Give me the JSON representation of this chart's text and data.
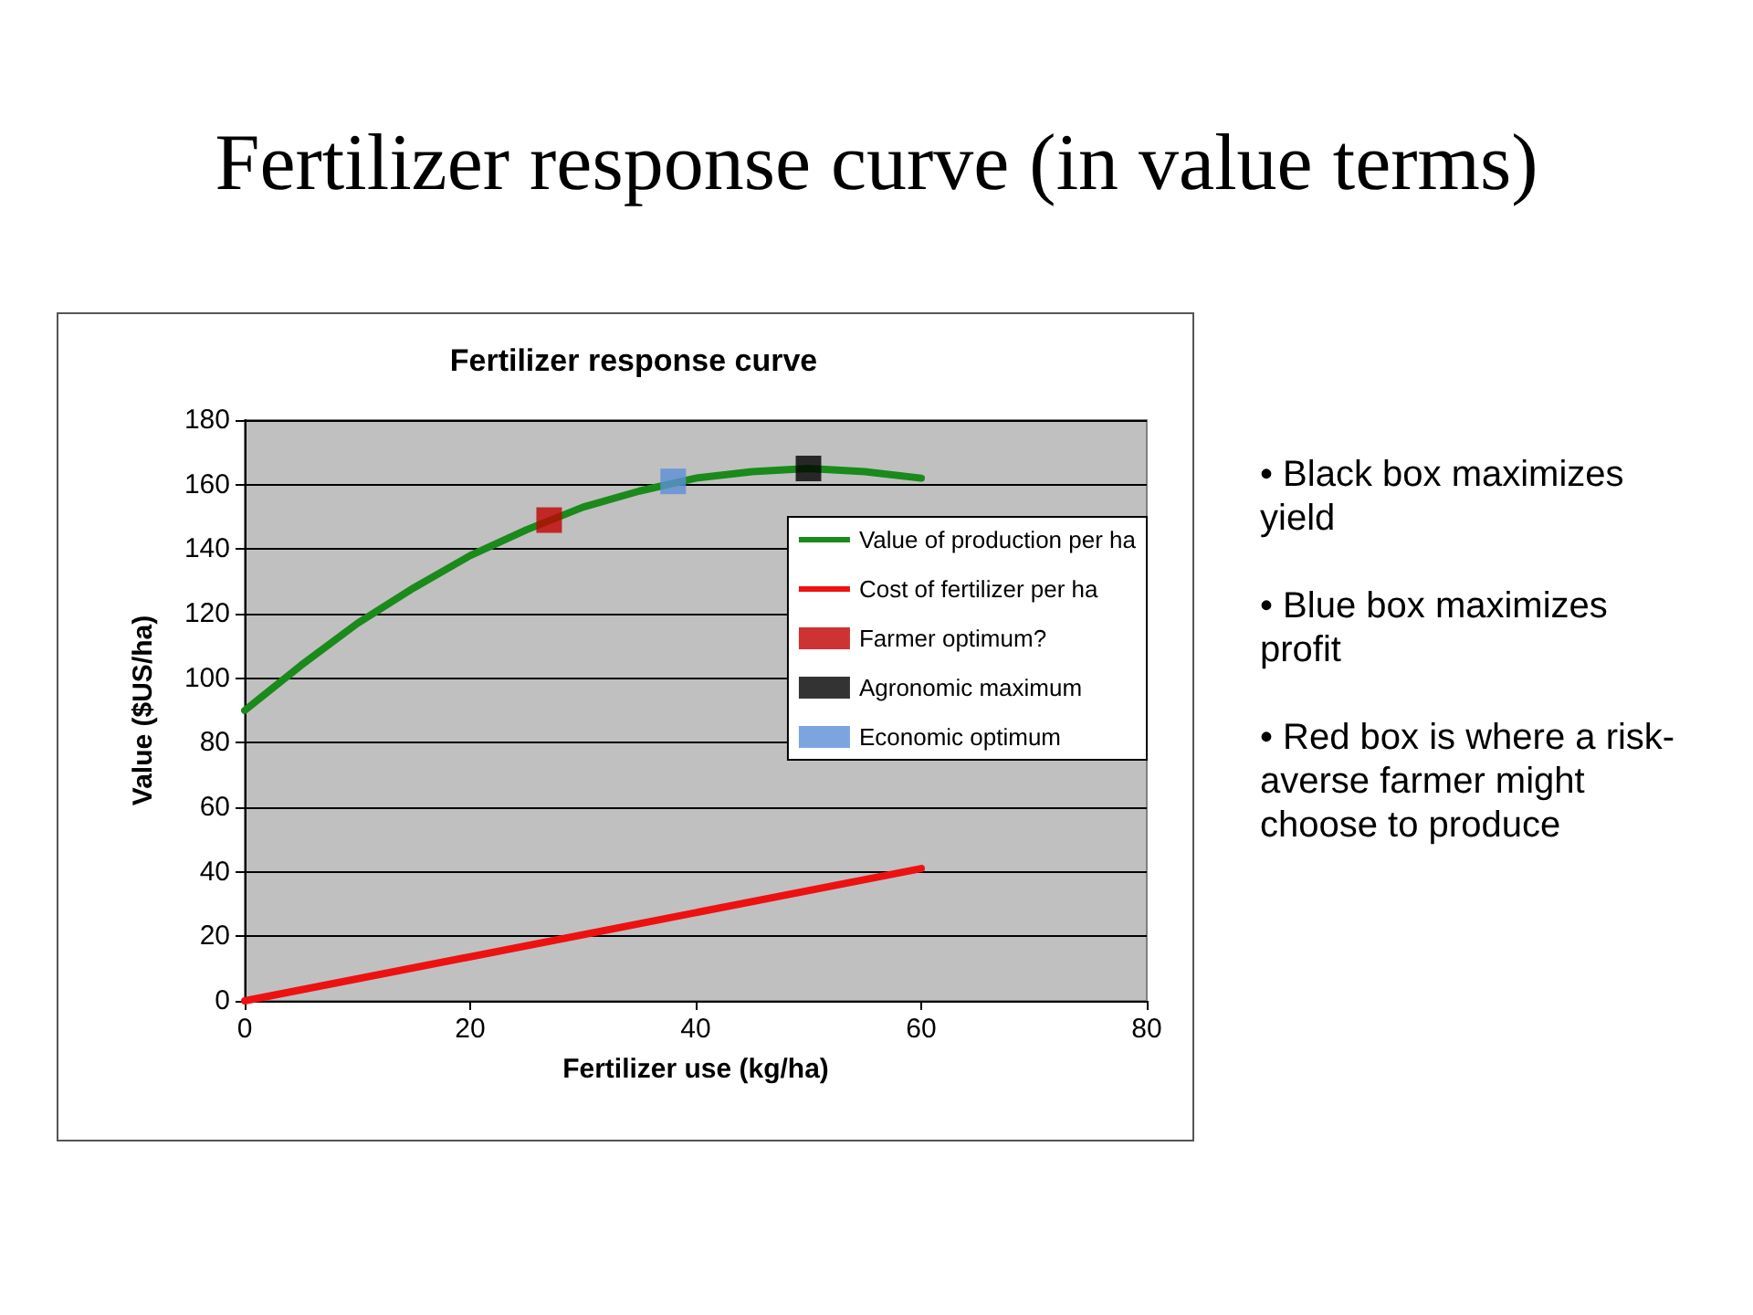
{
  "chart_data": {
    "type": "line",
    "title": "Fertilizer response curve (in value terms)",
    "subtitle": "Fertilizer response curve",
    "xlabel": "Fertilizer use (kg/ha)",
    "ylabel": "Value ($US/ha)",
    "xlim": [
      0,
      80
    ],
    "xticks": [
      0,
      20,
      40,
      60,
      80
    ],
    "ylim": [
      0,
      180
    ],
    "yticks": [
      0,
      20,
      40,
      60,
      80,
      100,
      120,
      140,
      160,
      180
    ],
    "grid": "y",
    "legend": "right",
    "line_style": "solid",
    "series": [
      {
        "name": "Value of production per ha",
        "marker": "none",
        "color": "#1a8a1a",
        "x": [
          0,
          5,
          10,
          15,
          20,
          25,
          30,
          35,
          40,
          45,
          50,
          55,
          60
        ],
        "values": [
          90,
          104,
          117,
          128,
          138,
          146,
          153,
          158,
          162,
          164,
          165,
          164,
          162
        ]
      },
      {
        "name": "Cost of fertilizer per ha",
        "marker": "none",
        "color": "#ee1111",
        "x": [
          0,
          60
        ],
        "values": [
          0,
          41
        ]
      },
      {
        "name": "Farmer optimum?",
        "type": "scatter",
        "marker": "square",
        "color": "#c00000",
        "x": [
          27
        ],
        "values": [
          149
        ]
      },
      {
        "name": "Agronomic maximum",
        "type": "scatter",
        "marker": "square",
        "color": "#000000",
        "x": [
          50
        ],
        "values": [
          165
        ]
      },
      {
        "name": "Economic optimum",
        "type": "scatter",
        "marker": "square",
        "color": "#5b8fd8",
        "x": [
          38
        ],
        "values": [
          161
        ]
      }
    ],
    "annotations": [
      "• Black box maximizes yield",
      "• Blue box maximizes profit",
      "• Red box is where a risk-averse farmer might choose to produce"
    ]
  }
}
